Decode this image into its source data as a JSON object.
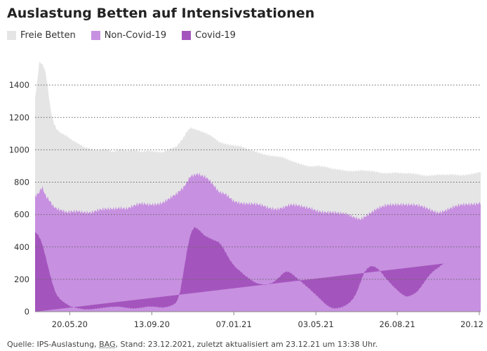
{
  "title": "Auslastung Betten auf Intensivstationen",
  "legend": [
    {
      "label": "Freie Betten",
      "color": "#e5e5e5"
    },
    {
      "label": "Non-Covid-19",
      "color": "#c790e0"
    },
    {
      "label": "Covid-19",
      "color": "#a455bd"
    }
  ],
  "source": {
    "prefix": "Quelle: IPS-Auslastung, ",
    "bag": "BAG",
    "suffix": ", Stand: 23.12.2021, zuletzt aktualisiert am 23.12.21 um 13:38 Uhr."
  },
  "chart_data": {
    "type": "area",
    "stacked": true,
    "title": "Auslastung Betten auf Intensivstationen",
    "x_start": "2020-04-01",
    "x_end": "2021-12-23",
    "x_ticks": [
      "20.05.20",
      "13.09.20",
      "07.01.21",
      "03.05.21",
      "26.08.21",
      "20.12"
    ],
    "x_tick_days": [
      49,
      165,
      281,
      397,
      512,
      628
    ],
    "ylim": [
      0,
      1600
    ],
    "y_ticks": [
      0,
      200,
      400,
      600,
      800,
      1000,
      1200,
      1400
    ],
    "grid": "dotted-horizontal",
    "series": [
      {
        "name": "Covid-19",
        "color": "#a455bd",
        "day": [
          0,
          5,
          10,
          15,
          20,
          25,
          30,
          35,
          40,
          45,
          50,
          60,
          70,
          80,
          90,
          100,
          110,
          120,
          130,
          140,
          150,
          160,
          170,
          180,
          190,
          195,
          200,
          205,
          210,
          215,
          220,
          225,
          230,
          235,
          240,
          245,
          250,
          255,
          260,
          265,
          270,
          275,
          280,
          285,
          290,
          295,
          300,
          305,
          310,
          315,
          320,
          325,
          330,
          335,
          340,
          345,
          350,
          355,
          360,
          365,
          370,
          375,
          380,
          385,
          390,
          395,
          400,
          405,
          410,
          415,
          420,
          425,
          430,
          435,
          440,
          445,
          450,
          455,
          460,
          465,
          470,
          475,
          480,
          485,
          490,
          495,
          500,
          505,
          510,
          515,
          520,
          525,
          530,
          535,
          540,
          545,
          550,
          555,
          560,
          565,
          570,
          575,
          580,
          585,
          590,
          595,
          600,
          605,
          610,
          615,
          620,
          625,
          630
        ],
        "values": [
          490,
          470,
          420,
          340,
          250,
          170,
          110,
          80,
          60,
          45,
          30,
          20,
          15,
          18,
          22,
          25,
          28,
          30,
          25,
          22,
          25,
          30,
          28,
          25,
          35,
          45,
          60,
          120,
          250,
          380,
          480,
          520,
          510,
          490,
          470,
          460,
          450,
          440,
          430,
          400,
          360,
          320,
          290,
          265,
          250,
          230,
          215,
          200,
          185,
          175,
          170,
          165,
          168,
          175,
          190,
          210,
          235,
          250,
          245,
          230,
          210,
          190,
          170,
          150,
          130,
          110,
          90,
          70,
          50,
          35,
          25,
          22,
          25,
          30,
          40,
          55,
          80,
          120,
          180,
          240,
          270,
          285,
          280,
          265,
          240,
          210,
          185,
          160,
          140,
          120,
          105,
          95,
          100,
          110,
          125,
          150,
          180,
          210,
          235,
          255,
          270,
          290,
          305
        ]
      },
      {
        "name": "Non-Covid-19",
        "color": "#c790e0",
        "day": [
          0,
          5,
          10,
          15,
          20,
          25,
          30,
          35,
          40,
          45,
          50,
          60,
          70,
          80,
          90,
          100,
          110,
          120,
          130,
          140,
          150,
          160,
          170,
          180,
          190,
          200,
          210,
          215,
          220,
          225,
          230,
          235,
          240,
          245,
          250,
          255,
          260,
          270,
          280,
          290,
          300,
          310,
          320,
          330,
          340,
          350,
          360,
          370,
          380,
          390,
          400,
          410,
          420,
          430,
          440,
          450,
          460,
          470,
          480,
          490,
          500,
          510,
          520,
          530,
          540,
          550,
          560,
          570,
          580,
          590,
          600,
          610,
          620,
          630
        ],
        "values": [
          720,
          740,
          780,
          720,
          690,
          650,
          630,
          620,
          615,
          610,
          620,
          630,
          620,
          610,
          620,
          630,
          640,
          650,
          640,
          650,
          660,
          660,
          670,
          680,
          700,
          720,
          760,
          800,
          840,
          850,
          860,
          850,
          840,
          820,
          790,
          760,
          730,
          720,
          690,
          680,
          670,
          660,
          650,
          640,
          640,
          650,
          660,
          650,
          640,
          640,
          630,
          620,
          610,
          600,
          600,
          590,
          580,
          600,
          620,
          640,
          660,
          670,
          670,
          660,
          650,
          640,
          630,
          620,
          630,
          640,
          650,
          660,
          670,
          680
        ]
      },
      {
        "name": "Freie Betten",
        "color": "#e5e5e5",
        "day": [
          0,
          3,
          6,
          9,
          12,
          15,
          18,
          21,
          25,
          30,
          35,
          40,
          45,
          50,
          60,
          70,
          80,
          90,
          100,
          110,
          120,
          130,
          140,
          150,
          160,
          170,
          180,
          190,
          200,
          210,
          215,
          220,
          225,
          230,
          235,
          240,
          245,
          250,
          260,
          270,
          280,
          290,
          300,
          310,
          320,
          330,
          340,
          350,
          360,
          370,
          380,
          390,
          400,
          410,
          420,
          430,
          440,
          450,
          460,
          470,
          480,
          490,
          500,
          510,
          520,
          530,
          540,
          550,
          560,
          570,
          580,
          590,
          600,
          610,
          620,
          630
        ],
        "values": [
          1320,
          1420,
          1540,
          1530,
          1510,
          1470,
          1380,
          1270,
          1180,
          1130,
          1110,
          1100,
          1090,
          1070,
          1040,
          1010,
          1000,
          1000,
          1010,
          990,
          1000,
          990,
          1000,
          990,
          1000,
          990,
          980,
          1000,
          1020,
          1080,
          1120,
          1140,
          1130,
          1120,
          1110,
          1100,
          1090,
          1080,
          1050,
          1040,
          1030,
          1020,
          1000,
          990,
          980,
          970,
          960,
          950,
          930,
          920,
          910,
          900,
          900,
          890,
          880,
          880,
          875,
          870,
          870,
          865,
          865,
          860,
          860,
          860,
          850,
          850,
          850,
          845,
          845,
          845,
          840,
          845,
          845,
          850,
          855,
          860
        ]
      }
    ]
  }
}
